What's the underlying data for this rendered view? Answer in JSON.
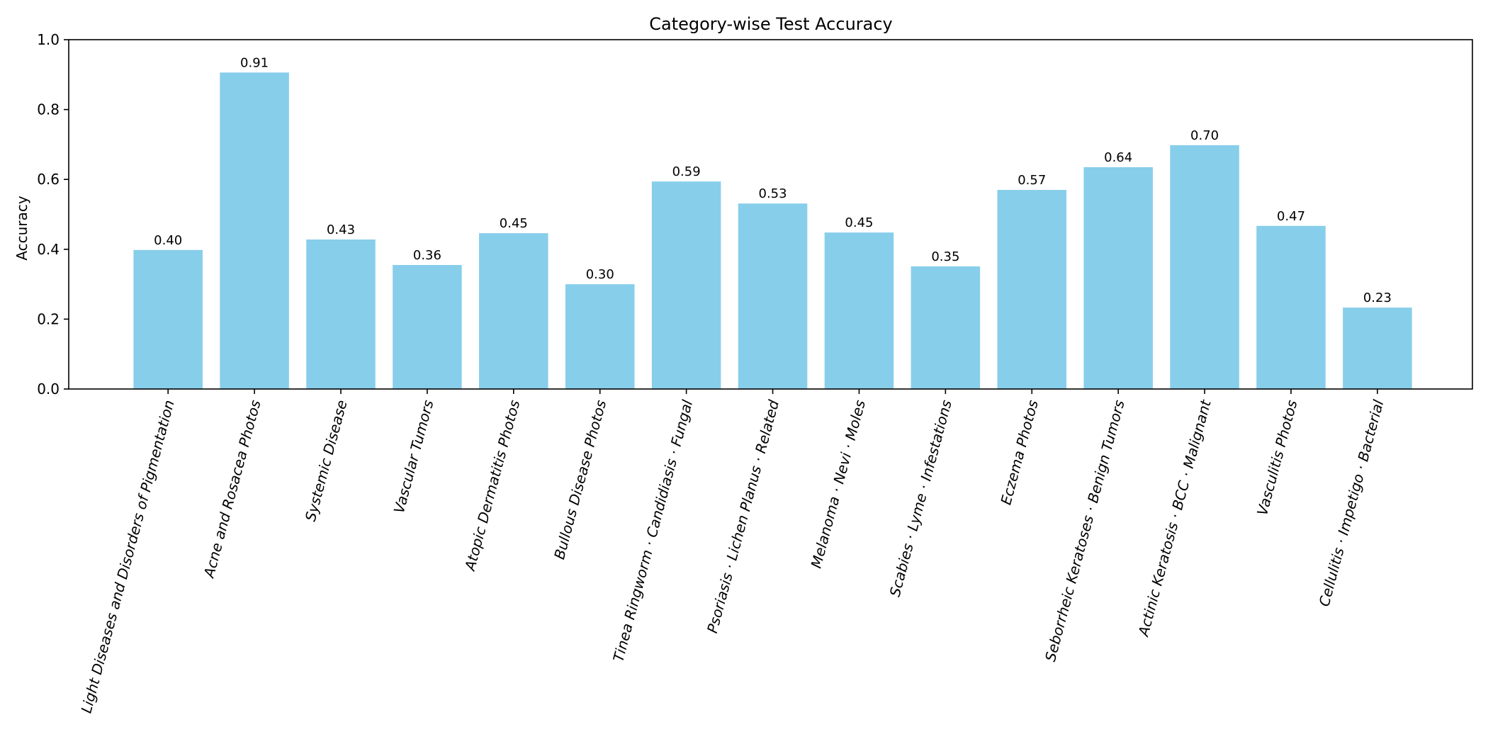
{
  "chart_data": {
    "type": "bar",
    "title": "Category-wise Test Accuracy",
    "xlabel": "",
    "ylabel": "Accuracy",
    "ylim": [
      0,
      1.0
    ],
    "yticks": [
      "0.0",
      "0.2",
      "0.4",
      "0.6",
      "0.8",
      "1.0"
    ],
    "ytick_values": [
      0.0,
      0.2,
      0.4,
      0.6,
      0.8,
      1.0
    ],
    "grid": false,
    "bar_color": "#87ceeb",
    "categories": [
      "Light Diseases and Disorders of Pigmentation",
      "Acne and Rosacea Photos",
      "Systemic Disease",
      "Vascular Tumors",
      "Atopic Dermatitis Photos",
      "Bullous Disease Photos",
      "Tinea Ringworm · Candidiasis · Fungal",
      "Psoriasis · Lichen Planus · Related",
      "Melanoma · Nevi · Moles",
      "Scabies · Lyme · Infestations",
      "Eczema Photos",
      "Seborrheic Keratoses · Benign Tumors",
      "Actinic Keratosis · BCC · Malignant",
      "Vasculitis Photos",
      "Cellulitis · Impetigo · Bacterial"
    ],
    "values": [
      0.398,
      0.906,
      0.428,
      0.355,
      0.446,
      0.3,
      0.594,
      0.531,
      0.448,
      0.351,
      0.57,
      0.635,
      0.698,
      0.467,
      0.233
    ],
    "value_labels": [
      "0.40",
      "0.91",
      "0.43",
      "0.36",
      "0.45",
      "0.30",
      "0.59",
      "0.53",
      "0.45",
      "0.35",
      "0.57",
      "0.64",
      "0.70",
      "0.47",
      "0.23"
    ]
  }
}
